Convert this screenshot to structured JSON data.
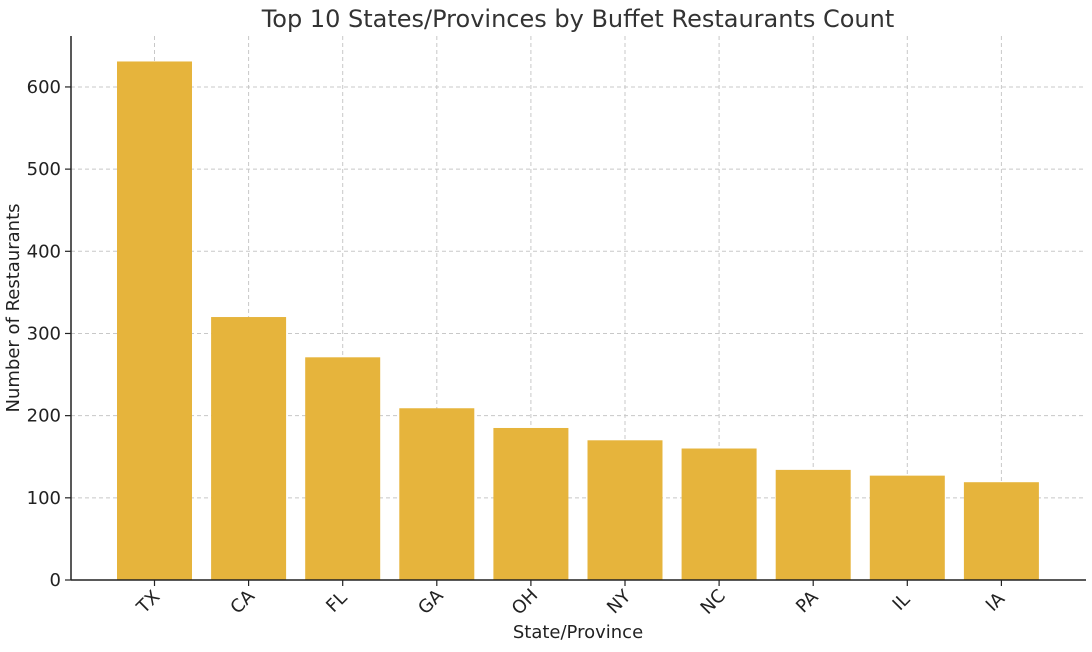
{
  "chart_data": {
    "type": "bar",
    "title": "Top 10 States/Provinces by Buffet Restaurants Count",
    "xlabel": "State/Province",
    "ylabel": "Number of Restaurants",
    "categories": [
      "TX",
      "CA",
      "FL",
      "GA",
      "OH",
      "NY",
      "NC",
      "PA",
      "IL",
      "IA"
    ],
    "values": [
      631,
      320,
      271,
      209,
      185,
      170,
      160,
      134,
      127,
      119
    ],
    "ylim": [
      0,
      662
    ],
    "yticks": [
      0,
      100,
      200,
      300,
      400,
      500,
      600
    ],
    "grid": true,
    "bar_color": "#E6B43C"
  }
}
